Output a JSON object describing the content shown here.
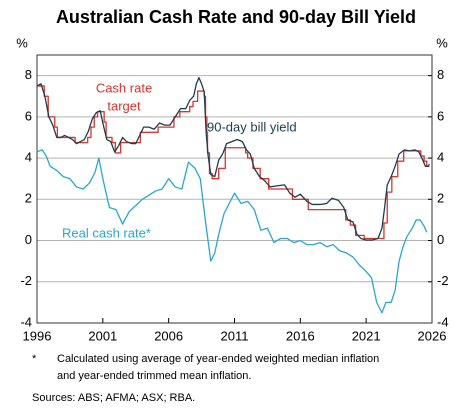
{
  "chart_data": {
    "type": "line",
    "title": "Australian Cash Rate and 90-day Bill Yield",
    "y_label": "%",
    "y2_label": "%",
    "xlim": [
      1996,
      2026
    ],
    "xticks": [
      1996,
      2001,
      2006,
      2011,
      2016,
      2021,
      2026
    ],
    "ylim": [
      -4,
      9
    ],
    "yticks": [
      -4,
      -2,
      0,
      2,
      4,
      6,
      8
    ],
    "y2lim": [
      -4,
      9
    ],
    "y2ticks": [
      -4,
      -2,
      0,
      2,
      4,
      6,
      8
    ],
    "grid": true,
    "annotations": [
      {
        "lines": [
          "Cash rate",
          "target"
        ]
      },
      {
        "lines": [
          "90-day bill yield"
        ]
      },
      {
        "lines": [
          "Real cash rate*"
        ]
      }
    ],
    "notes": [
      "*",
      "Calculated using average of year-ended weighted median inflation",
      "and year-ended trimmed mean inflation."
    ],
    "sources": "Sources: ABS; AFMA; ASX; RBA.",
    "series": [
      {
        "color": "#e0312b",
        "step": "after",
        "x": [
          1996,
          1996.55,
          1996.85,
          1997.35,
          1997.55,
          1998.9,
          1999.85,
          2000.1,
          2000.35,
          2000.6,
          2001.1,
          2001.25,
          2001.7,
          2001.95,
          2002.35,
          2003.85,
          2005.2,
          2006.4,
          2006.85,
          2007.6,
          2007.85,
          2008.2,
          2008.7,
          2008.8,
          2008.9,
          2008.95,
          2009.1,
          2009.3,
          2009.8,
          2010.3,
          2011.85,
          2012.0,
          2012.4,
          2012.95,
          2013.6,
          2015.4,
          2016.6,
          2019.45,
          2019.8,
          2020.2,
          2020.85,
          2022.35,
          2022.6,
          2022.95,
          2023.4,
          2023.85,
          2025.15,
          2025.4,
          2025.6,
          2025.8
        ],
        "values": [
          7.5,
          7.0,
          6.0,
          5.5,
          5.0,
          4.75,
          5.0,
          5.5,
          6.0,
          6.25,
          5.75,
          5.0,
          4.75,
          4.25,
          4.75,
          5.25,
          5.5,
          6.0,
          6.25,
          6.5,
          6.75,
          7.25,
          7.0,
          6.0,
          5.25,
          4.25,
          3.25,
          3.0,
          3.5,
          4.5,
          4.25,
          4.0,
          3.5,
          3.0,
          2.5,
          2.0,
          1.5,
          1.0,
          0.75,
          0.25,
          0.1,
          0.85,
          2.35,
          3.1,
          3.85,
          4.35,
          4.1,
          3.85,
          3.6,
          3.6
        ]
      },
      {
        "color": "#1c3d4f",
        "x": [
          1996,
          1996.3,
          1996.6,
          1996.9,
          1997.2,
          1997.5,
          1997.8,
          1998.1,
          1998.4,
          1998.7,
          1999.0,
          1999.3,
          1999.6,
          1999.9,
          2000.2,
          2000.5,
          2000.8,
          2001.0,
          2001.3,
          2001.6,
          2001.9,
          2002.2,
          2002.5,
          2002.8,
          2003.2,
          2003.5,
          2003.8,
          2004.1,
          2004.5,
          2004.9,
          2005.3,
          2005.7,
          2006.1,
          2006.5,
          2006.9,
          2007.3,
          2007.6,
          2007.9,
          2008.1,
          2008.3,
          2008.5,
          2008.7,
          2008.85,
          2009.0,
          2009.2,
          2009.5,
          2009.8,
          2010.1,
          2010.4,
          2010.8,
          2011.2,
          2011.6,
          2011.9,
          2012.2,
          2012.5,
          2012.9,
          2013.3,
          2013.7,
          2014.2,
          2014.8,
          2015.2,
          2015.6,
          2016.0,
          2016.5,
          2016.9,
          2017.5,
          2018.0,
          2018.4,
          2018.9,
          2019.3,
          2019.6,
          2020.0,
          2020.3,
          2020.6,
          2021.0,
          2021.5,
          2021.9,
          2022.2,
          2022.4,
          2022.6,
          2022.9,
          2023.2,
          2023.5,
          2023.9,
          2024.3,
          2024.7,
          2025.0,
          2025.3,
          2025.5,
          2025.7,
          2025.8
        ],
        "values": [
          7.5,
          7.6,
          7.0,
          6.0,
          5.6,
          5.0,
          5.0,
          5.1,
          5.0,
          4.9,
          4.7,
          4.8,
          4.9,
          5.3,
          5.9,
          6.2,
          6.3,
          5.7,
          4.9,
          4.8,
          4.3,
          4.6,
          5.0,
          4.8,
          4.7,
          4.7,
          5.1,
          5.5,
          5.5,
          5.4,
          5.7,
          5.6,
          5.6,
          6.0,
          6.4,
          6.4,
          6.8,
          7.0,
          7.6,
          7.9,
          7.6,
          7.2,
          5.2,
          4.1,
          3.2,
          3.1,
          3.9,
          4.2,
          4.7,
          4.8,
          4.9,
          4.8,
          4.4,
          4.2,
          3.5,
          3.1,
          2.9,
          2.6,
          2.65,
          2.7,
          2.3,
          2.1,
          2.25,
          1.9,
          1.75,
          1.75,
          1.8,
          2.05,
          1.95,
          1.6,
          1.0,
          0.9,
          0.3,
          0.1,
          0.02,
          0.03,
          0.1,
          0.6,
          1.6,
          2.7,
          3.1,
          3.6,
          4.2,
          4.4,
          4.35,
          4.4,
          4.3,
          3.9,
          3.6,
          3.6,
          3.7
        ]
      },
      {
        "color": "#2aa6d5",
        "x": [
          1996,
          1996.4,
          1996.7,
          1997.0,
          1997.5,
          1998.0,
          1998.5,
          1999.0,
          1999.5,
          2000.0,
          2000.4,
          2000.7,
          2001.0,
          2001.5,
          2002.0,
          2002.5,
          2003.0,
          2003.5,
          2004.0,
          2004.5,
          2005.0,
          2005.5,
          2006.0,
          2006.5,
          2007.0,
          2007.5,
          2008.0,
          2008.4,
          2008.8,
          2009.2,
          2009.5,
          2009.8,
          2010.2,
          2010.6,
          2011.0,
          2011.5,
          2012.0,
          2012.5,
          2013.0,
          2013.5,
          2014.0,
          2014.5,
          2015.0,
          2015.5,
          2016.0,
          2016.5,
          2017.0,
          2017.5,
          2018.0,
          2018.5,
          2019.0,
          2019.5,
          2020.0,
          2020.5,
          2021.0,
          2021.4,
          2021.8,
          2022.2,
          2022.5,
          2022.9,
          2023.2,
          2023.5,
          2023.8,
          2024.1,
          2024.5,
          2024.8,
          2025.1,
          2025.4,
          2025.6
        ],
        "values": [
          4.3,
          4.4,
          4.1,
          3.6,
          3.4,
          3.1,
          3.0,
          2.6,
          2.5,
          2.8,
          3.3,
          4.0,
          3.0,
          1.6,
          1.5,
          0.8,
          1.4,
          1.7,
          2.0,
          2.2,
          2.4,
          2.5,
          3.0,
          2.6,
          2.5,
          3.8,
          3.5,
          3.0,
          0.9,
          -1.0,
          -0.6,
          0.3,
          1.3,
          1.8,
          2.3,
          1.8,
          1.9,
          1.5,
          0.5,
          0.6,
          -0.1,
          0.1,
          0.1,
          -0.1,
          0.0,
          -0.2,
          -0.2,
          -0.1,
          -0.3,
          -0.2,
          -0.5,
          -0.6,
          -0.8,
          -1.2,
          -1.5,
          -1.8,
          -3.0,
          -3.5,
          -3.0,
          -3.0,
          -2.4,
          -1.0,
          -0.3,
          0.2,
          0.6,
          1.0,
          1.0,
          0.7,
          0.4
        ]
      }
    ]
  }
}
